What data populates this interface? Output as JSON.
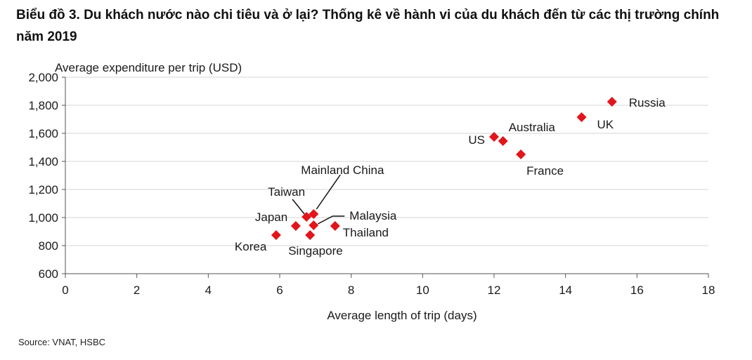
{
  "title": "Biểu đồ 3. Du khách nước nào chi tiêu và ở lại? Thống kê về hành vi của du khách đến từ các thị trường chính năm 2019",
  "source": "Source: VNAT, HSBC",
  "chart_data": {
    "type": "scatter",
    "xlabel": "Average length of trip (days)",
    "ylabel": "Average expenditure per trip (USD)",
    "xlim": [
      0,
      18
    ],
    "ylim": [
      600,
      2000
    ],
    "x_ticks": [
      0,
      2,
      4,
      6,
      8,
      10,
      12,
      14,
      16,
      18
    ],
    "y_ticks": [
      600,
      800,
      1000,
      1200,
      1400,
      1600,
      1800,
      2000
    ],
    "x_tick_labels": [
      "0",
      "2",
      "4",
      "6",
      "8",
      "10",
      "12",
      "14",
      "16",
      "18"
    ],
    "y_tick_labels": [
      "600",
      "800",
      "1,000",
      "1,200",
      "1,400",
      "1,600",
      "1,800",
      "2,000"
    ],
    "grid": "horizontal",
    "marker": "diamond",
    "marker_color": "#e0161b",
    "points": [
      {
        "label": "Russia",
        "x": 15.3,
        "y": 1825
      },
      {
        "label": "UK",
        "x": 14.45,
        "y": 1715
      },
      {
        "label": "Australia",
        "x": 12.25,
        "y": 1545
      },
      {
        "label": "US",
        "x": 12.0,
        "y": 1575
      },
      {
        "label": "France",
        "x": 12.75,
        "y": 1450
      },
      {
        "label": "Mainland China",
        "x": 6.95,
        "y": 1025
      },
      {
        "label": "Taiwan",
        "x": 6.75,
        "y": 1005
      },
      {
        "label": "Malaysia",
        "x": 6.95,
        "y": 945
      },
      {
        "label": "Japan",
        "x": 6.45,
        "y": 940
      },
      {
        "label": "Thailand",
        "x": 7.55,
        "y": 940
      },
      {
        "label": "Singapore",
        "x": 6.85,
        "y": 875
      },
      {
        "label": "Korea",
        "x": 5.9,
        "y": 875
      }
    ]
  }
}
